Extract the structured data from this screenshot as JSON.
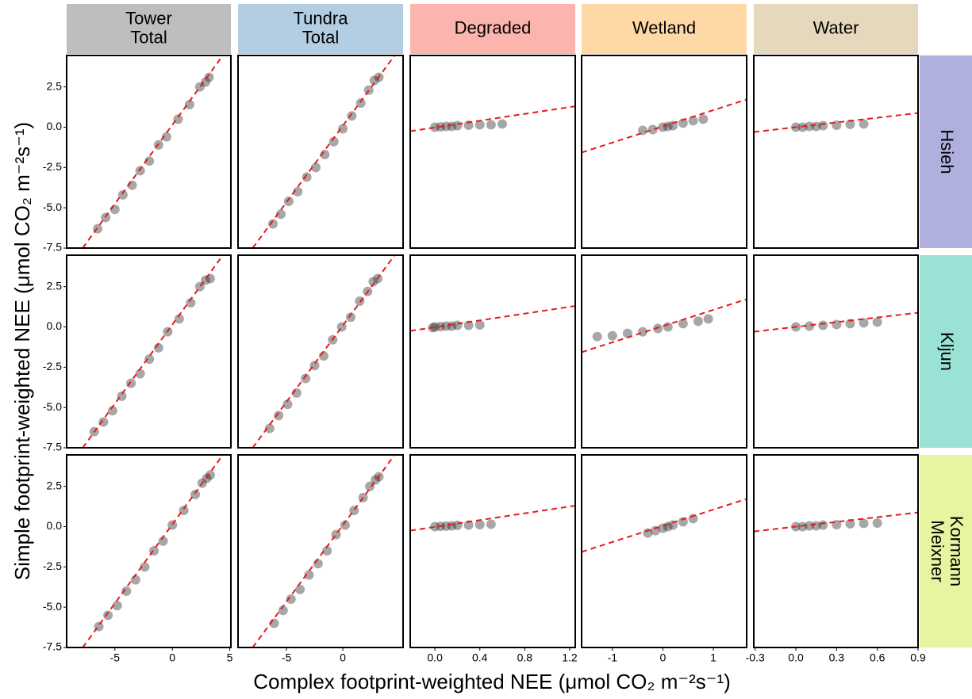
{
  "chart_data": {
    "type": "scatter",
    "x_label": "Complex footprint-weighted NEE (μmol CO₂ m⁻²s⁻¹)",
    "y_label": "Simple footprint-weighted NEE (μmol CO₂ m⁻²s⁻¹)",
    "ylim": [
      -7.5,
      4.45
    ],
    "yticks": [
      -7.5,
      {
        "value": -5,
        "label": "-5.0"
      },
      -2.5,
      {
        "value": 0,
        "label": "0.0"
      },
      2.5
    ],
    "point_color": "#222222",
    "fit_color": "#e41a1c",
    "columns": [
      {
        "label_lines": [
          "Tower",
          "Total"
        ],
        "color": "#bebebe",
        "xlim": [
          -9.2,
          5.1
        ],
        "xticks": [
          -5,
          0,
          5
        ]
      },
      {
        "label_lines": [
          "Tundra",
          "Total"
        ],
        "color": "#b3cde3",
        "xlim": [
          -9.3,
          5.35
        ],
        "xticks": [
          -5,
          0
        ]
      },
      {
        "label_lines": [
          "Degraded"
        ],
        "color": "#fbb4ae",
        "xlim": [
          -0.22,
          1.25
        ],
        "xticks": [
          {
            "value": 0,
            "label": "0.0"
          },
          0.4,
          0.8,
          1.2
        ]
      },
      {
        "label_lines": [
          "Wetland"
        ],
        "color": "#fed9a6",
        "xlim": [
          -1.61,
          1.66
        ],
        "xticks": [
          -1,
          0,
          1
        ]
      },
      {
        "label_lines": [
          "Water"
        ],
        "color": "#e5d8bd",
        "xlim": [
          -0.31,
          0.9
        ],
        "xticks": [
          -0.3,
          {
            "value": 0,
            "label": "0.0"
          },
          0.3,
          0.6,
          0.9
        ]
      }
    ],
    "rows": [
      {
        "label_lines": [
          "Hsieh"
        ],
        "color": "#b0b0de"
      },
      {
        "label_lines": [
          "Kljun"
        ],
        "color": "#99e2d5"
      },
      {
        "label_lines": [
          "Kormann",
          "Meixner"
        ],
        "color": "#e5f5a0"
      }
    ],
    "panels": [
      [
        {
          "x": [
            -6.5,
            -5.8,
            -5,
            -4.3,
            -3.5,
            -2.8,
            -2,
            -1.2,
            -0.5,
            0.5,
            1.5,
            2.4,
            2.9,
            3.2
          ],
          "y": [
            -6.3,
            -5.6,
            -5.1,
            -4.2,
            -3.6,
            -2.7,
            -2.1,
            -1.1,
            -0.6,
            0.5,
            1.4,
            2.5,
            2.8,
            3.1
          ],
          "fit": {
            "x": [
              -7.8,
              4.4
            ],
            "y": [
              -7.5,
              4.45
            ]
          }
        },
        {
          "x": [
            -6.2,
            -5.5,
            -4.8,
            -4,
            -3.2,
            -2.4,
            -1.6,
            -0.8,
            0,
            0.8,
            1.6,
            2.3,
            2.8,
            3.2
          ],
          "y": [
            -6,
            -5.4,
            -4.6,
            -4,
            -3.1,
            -2.5,
            -1.7,
            -0.9,
            -0.1,
            0.7,
            1.5,
            2.3,
            2.9,
            3.1
          ],
          "fit": {
            "x": [
              -8,
              4.6
            ],
            "y": [
              -7.5,
              4.45
            ]
          }
        },
        {
          "x": [
            0,
            0.05,
            0.1,
            0.15,
            0.2,
            0.3,
            0.4,
            0.5,
            0.6
          ],
          "y": [
            0,
            0.02,
            0.05,
            0.05,
            0.1,
            0.12,
            0.15,
            0.15,
            0.2
          ],
          "fit": {
            "x": [
              -0.22,
              1.25
            ],
            "y": [
              -0.25,
              1.3
            ]
          }
        },
        {
          "x": [
            -0.4,
            -0.2,
            0,
            0.1,
            0.2,
            0.4,
            0.6,
            0.8
          ],
          "y": [
            -0.2,
            -0.15,
            0,
            0.05,
            0.1,
            0.25,
            0.4,
            0.5
          ],
          "fit": {
            "x": [
              -1.61,
              1.66
            ],
            "y": [
              -1.57,
              1.72
            ]
          }
        },
        {
          "x": [
            0,
            0.05,
            0.1,
            0.15,
            0.2,
            0.3,
            0.4,
            0.5
          ],
          "y": [
            0,
            0,
            0.05,
            0.05,
            0.1,
            0.12,
            0.18,
            0.2
          ],
          "fit": {
            "x": [
              -0.31,
              0.9
            ],
            "y": [
              -0.3,
              0.88
            ]
          }
        }
      ],
      [
        {
          "x": [
            -6.8,
            -6,
            -5.2,
            -4.4,
            -3.6,
            -2.8,
            -2,
            -1.2,
            -0.4,
            0.6,
            1.6,
            2.4,
            2.9,
            3.3
          ],
          "y": [
            -6.5,
            -5.9,
            -5.2,
            -4.3,
            -3.5,
            -2.9,
            -2,
            -1.3,
            -0.3,
            0.5,
            1.5,
            2.5,
            2.9,
            3
          ],
          "fit": {
            "x": [
              -7.8,
              4.4
            ],
            "y": [
              -7.5,
              4.45
            ]
          }
        },
        {
          "x": [
            -6.5,
            -5.7,
            -4.9,
            -4.1,
            -3.3,
            -2.5,
            -1.7,
            -0.9,
            -0.1,
            0.7,
            1.5,
            2.2,
            2.7,
            3.1
          ],
          "y": [
            -6.3,
            -5.5,
            -4.8,
            -4.1,
            -3.2,
            -2.4,
            -1.8,
            -0.8,
            0,
            0.6,
            1.6,
            2.2,
            2.8,
            3
          ],
          "fit": {
            "x": [
              -8,
              4.6
            ],
            "y": [
              -7.5,
              4.45
            ]
          }
        },
        {
          "x": [
            -0.02,
            0,
            0.05,
            0.1,
            0.15,
            0.2,
            0.3,
            0.4
          ],
          "y": [
            -0.05,
            0,
            0.02,
            0.05,
            0.05,
            0.1,
            0.1,
            0.12
          ],
          "fit": {
            "x": [
              -0.22,
              1.25
            ],
            "y": [
              -0.25,
              1.3
            ]
          }
        },
        {
          "x": [
            -1.3,
            -1,
            -0.7,
            -0.4,
            -0.1,
            0.1,
            0.4,
            0.7,
            0.9
          ],
          "y": [
            -0.6,
            -0.55,
            -0.4,
            -0.3,
            -0.1,
            0,
            0.2,
            0.35,
            0.5
          ],
          "fit": {
            "x": [
              -1.61,
              1.66
            ],
            "y": [
              -1.57,
              1.72
            ]
          }
        },
        {
          "x": [
            0,
            0.1,
            0.2,
            0.3,
            0.4,
            0.5,
            0.6
          ],
          "y": [
            0,
            0.05,
            0.1,
            0.15,
            0.2,
            0.25,
            0.3
          ],
          "fit": {
            "x": [
              -0.31,
              0.9
            ],
            "y": [
              -0.3,
              0.88
            ]
          }
        }
      ],
      [
        {
          "x": [
            -6.4,
            -5.6,
            -4.8,
            -4,
            -3.2,
            -2.4,
            -1.6,
            -0.8,
            0,
            1,
            2,
            2.6,
            3,
            3.3
          ],
          "y": [
            -6.2,
            -5.5,
            -4.9,
            -4,
            -3.3,
            -2.5,
            -1.5,
            -0.9,
            0.1,
            1,
            2,
            2.7,
            3,
            3.2
          ],
          "fit": {
            "x": [
              -7.8,
              4.4
            ],
            "y": [
              -7.5,
              4.45
            ]
          }
        },
        {
          "x": [
            -6.1,
            -5.3,
            -4.6,
            -3.8,
            -3,
            -2.2,
            -1.4,
            -0.6,
            0.2,
            1,
            1.8,
            2.4,
            2.9,
            3.2
          ],
          "y": [
            -6,
            -5.2,
            -4.5,
            -3.9,
            -3,
            -2.3,
            -1.5,
            -0.5,
            0.1,
            1,
            1.8,
            2.5,
            2.9,
            3.1
          ],
          "fit": {
            "x": [
              -8,
              4.6
            ],
            "y": [
              -7.5,
              4.45
            ]
          }
        },
        {
          "x": [
            0,
            0.05,
            0.1,
            0.15,
            0.2,
            0.3,
            0.4,
            0.5
          ],
          "y": [
            0,
            0.02,
            0.03,
            0.05,
            0.08,
            0.1,
            0.12,
            0.15
          ],
          "fit": {
            "x": [
              -0.22,
              1.25
            ],
            "y": [
              -0.25,
              1.3
            ]
          }
        },
        {
          "x": [
            -0.3,
            -0.15,
            0,
            0.1,
            0.2,
            0.4,
            0.6
          ],
          "y": [
            -0.4,
            -0.25,
            -0.1,
            0,
            0.1,
            0.3,
            0.5
          ],
          "fit": {
            "x": [
              -1.61,
              1.66
            ],
            "y": [
              -1.57,
              1.72
            ]
          }
        },
        {
          "x": [
            0,
            0.05,
            0.1,
            0.15,
            0.2,
            0.3,
            0.4,
            0.5,
            0.6
          ],
          "y": [
            0,
            0,
            0.05,
            0.05,
            0.1,
            0.12,
            0.18,
            0.2,
            0.22
          ],
          "fit": {
            "x": [
              -0.31,
              0.9
            ],
            "y": [
              -0.3,
              0.88
            ]
          }
        }
      ]
    ]
  }
}
